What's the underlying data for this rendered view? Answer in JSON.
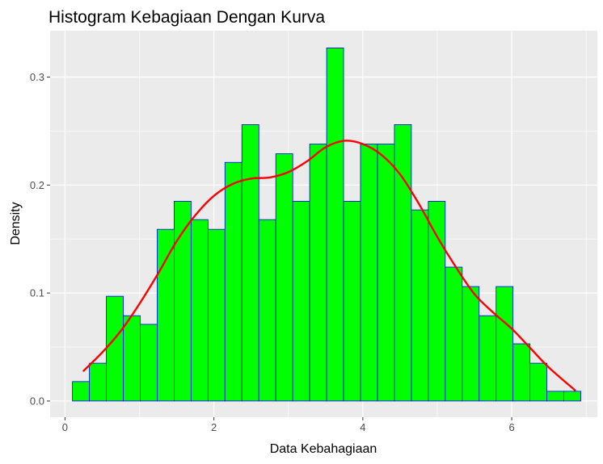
{
  "chart_data": {
    "type": "bar",
    "title": "Histogram Kebagiaan Dengan Kurva",
    "xlabel": "Data Kebahagiaan",
    "ylabel": "Density",
    "xlim": [
      -0.2,
      7.15
    ],
    "ylim": [
      -0.015,
      0.343
    ],
    "x_ticks": [
      0,
      2,
      4,
      6
    ],
    "y_ticks": [
      0.0,
      0.1,
      0.2,
      0.3
    ],
    "x_tick_labels": [
      "0",
      "2",
      "4",
      "6"
    ],
    "y_tick_labels": [
      "0.0",
      "0.1",
      "0.2",
      "0.3"
    ],
    "grid": true,
    "legend": "none",
    "colors": {
      "panel_background": "#ebebeb",
      "grid_line": "#ffffff",
      "bar_fill": "#00ff00",
      "bar_outline": "#0000ff",
      "density_curve": "#ff0000"
    },
    "histogram": {
      "bin_start": 0.1,
      "bin_width": 0.2276,
      "densities": [
        0.018,
        0.035,
        0.097,
        0.079,
        0.071,
        0.159,
        0.185,
        0.168,
        0.159,
        0.221,
        0.256,
        0.168,
        0.229,
        0.185,
        0.238,
        0.327,
        0.185,
        0.238,
        0.238,
        0.256,
        0.177,
        0.185,
        0.124,
        0.106,
        0.079,
        0.106,
        0.053,
        0.035,
        0.009,
        0.009
      ]
    },
    "density_curve": {
      "name": "",
      "x": [
        0.25,
        0.5,
        0.75,
        1.0,
        1.25,
        1.5,
        1.75,
        2.0,
        2.25,
        2.5,
        2.75,
        3.0,
        3.25,
        3.5,
        3.75,
        4.0,
        4.25,
        4.5,
        4.75,
        5.0,
        5.25,
        5.5,
        5.75,
        6.0,
        6.25,
        6.5,
        6.85
      ],
      "y": [
        0.028,
        0.045,
        0.065,
        0.09,
        0.118,
        0.148,
        0.172,
        0.19,
        0.201,
        0.206,
        0.207,
        0.212,
        0.222,
        0.235,
        0.241,
        0.238,
        0.228,
        0.21,
        0.183,
        0.152,
        0.124,
        0.099,
        0.082,
        0.067,
        0.049,
        0.031,
        0.01
      ]
    }
  }
}
